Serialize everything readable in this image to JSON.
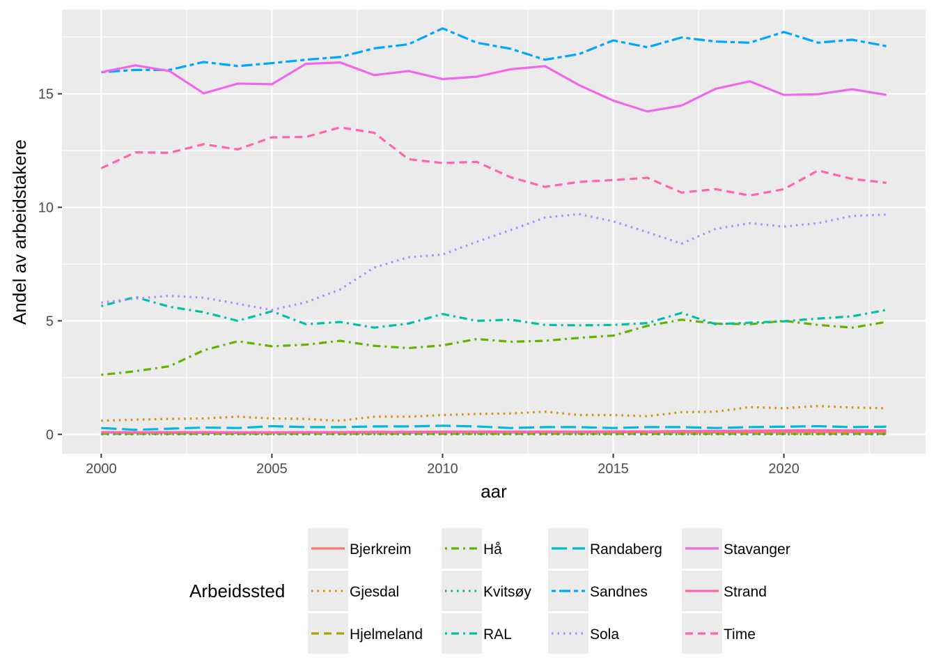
{
  "chart_data": {
    "type": "line",
    "title": "",
    "xlabel": "aar",
    "ylabel": "Andel av arbeidstakere",
    "xlim": [
      1998.85,
      2024.15
    ],
    "ylim": [
      -0.85,
      18.7
    ],
    "x_ticks": [
      2000,
      2005,
      2010,
      2015,
      2020
    ],
    "y_ticks": [
      0,
      5,
      10,
      15
    ],
    "grid": true,
    "legend": {
      "title": "Arbeidssted",
      "position": "bottom",
      "columns": 4
    },
    "x": [
      2000,
      2001,
      2002,
      2003,
      2004,
      2005,
      2006,
      2007,
      2008,
      2009,
      2010,
      2011,
      2012,
      2013,
      2014,
      2015,
      2016,
      2017,
      2018,
      2019,
      2020,
      2021,
      2022,
      2023
    ],
    "series": [
      {
        "name": "Bjerkreim",
        "color": "#F8766D",
        "dash": "solid",
        "values": [
          0.08,
          0.07,
          0.07,
          0.06,
          0.06,
          0.07,
          0.07,
          0.07,
          0.07,
          0.07,
          0.08,
          0.08,
          0.08,
          0.08,
          0.08,
          0.09,
          0.09,
          0.09,
          0.09,
          0.09,
          0.1,
          0.1,
          0.1,
          0.1
        ]
      },
      {
        "name": "Gjesdal",
        "color": "#DB8E00",
        "dash": "dot",
        "values": [
          0.6,
          0.65,
          0.68,
          0.7,
          0.78,
          0.7,
          0.68,
          0.6,
          0.78,
          0.78,
          0.85,
          0.9,
          0.92,
          1.0,
          0.85,
          0.85,
          0.8,
          0.98,
          1.0,
          1.2,
          1.15,
          1.25,
          1.18,
          1.15
        ]
      },
      {
        "name": "Hjelmeland",
        "color": "#AEA200",
        "dash": "dash",
        "values": [
          0.02,
          0.02,
          0.02,
          0.02,
          0.02,
          0.02,
          0.02,
          0.02,
          0.02,
          0.02,
          0.02,
          0.02,
          0.02,
          0.02,
          0.02,
          0.02,
          0.02,
          0.02,
          0.02,
          0.02,
          0.02,
          0.02,
          0.02,
          0.02
        ]
      },
      {
        "name": "Hå",
        "color": "#64B200",
        "dash": "dashdot",
        "values": [
          2.62,
          2.78,
          3.0,
          3.7,
          4.1,
          3.88,
          3.95,
          4.12,
          3.9,
          3.8,
          3.92,
          4.2,
          4.08,
          4.12,
          4.25,
          4.35,
          4.78,
          5.05,
          4.88,
          4.85,
          5.0,
          4.82,
          4.7,
          4.95
        ]
      },
      {
        "name": "Kvitsøy",
        "color": "#00BD5C",
        "dash": "dot",
        "values": [
          0.01,
          0.01,
          0.01,
          0.01,
          0.01,
          0.01,
          0.01,
          0.01,
          0.01,
          0.01,
          0.01,
          0.01,
          0.01,
          0.01,
          0.01,
          0.01,
          0.01,
          0.01,
          0.01,
          0.01,
          0.01,
          0.01,
          0.01,
          0.01
        ]
      },
      {
        "name": "RAL",
        "color": "#00C1A7",
        "dash": "dashdot",
        "values": [
          5.65,
          6.05,
          5.62,
          5.38,
          5.0,
          5.42,
          4.85,
          4.95,
          4.7,
          4.88,
          5.3,
          5.0,
          5.05,
          4.82,
          4.8,
          4.82,
          4.9,
          5.35,
          4.85,
          4.92,
          4.98,
          5.1,
          5.2,
          5.48
        ]
      },
      {
        "name": "Randaberg",
        "color": "#00BADE",
        "dash": "longdash",
        "values": [
          0.28,
          0.2,
          0.25,
          0.3,
          0.28,
          0.36,
          0.32,
          0.32,
          0.35,
          0.35,
          0.38,
          0.35,
          0.28,
          0.32,
          0.32,
          0.28,
          0.32,
          0.32,
          0.28,
          0.32,
          0.34,
          0.36,
          0.32,
          0.34
        ]
      },
      {
        "name": "Sandnes",
        "color": "#00A6FF",
        "dash": "twodash",
        "values": [
          15.95,
          16.05,
          16.05,
          16.4,
          16.22,
          16.35,
          16.5,
          16.62,
          17.0,
          17.18,
          17.88,
          17.25,
          16.98,
          16.5,
          16.75,
          17.35,
          17.05,
          17.48,
          17.3,
          17.25,
          17.72,
          17.25,
          17.38,
          17.1
        ]
      },
      {
        "name": "Sola",
        "color": "#B385FF",
        "dash": "dot",
        "values": [
          5.8,
          5.98,
          6.1,
          6.02,
          5.75,
          5.48,
          5.82,
          6.38,
          7.35,
          7.8,
          7.92,
          8.48,
          9.0,
          9.55,
          9.7,
          9.38,
          8.9,
          8.4,
          9.05,
          9.3,
          9.15,
          9.3,
          9.62,
          9.68
        ]
      },
      {
        "name": "Stavanger",
        "color": "#EF67EB",
        "dash": "solid",
        "values": [
          15.95,
          16.25,
          16.0,
          15.02,
          15.45,
          15.42,
          16.32,
          16.38,
          15.82,
          16.0,
          15.65,
          15.75,
          16.08,
          16.22,
          15.38,
          14.7,
          14.22,
          14.48,
          15.22,
          15.55,
          14.95,
          14.98,
          15.2,
          14.95
        ]
      },
      {
        "name": "Strand",
        "color": "#FF63B6",
        "dash": "solid",
        "values": [
          0.1,
          0.09,
          0.1,
          0.1,
          0.09,
          0.09,
          0.1,
          0.1,
          0.11,
          0.11,
          0.12,
          0.12,
          0.12,
          0.12,
          0.12,
          0.13,
          0.13,
          0.14,
          0.15,
          0.16,
          0.17,
          0.18,
          0.17,
          0.17
        ]
      },
      {
        "name": "Time",
        "color": "#FF64B0",
        "dash": "dash",
        "values": [
          11.72,
          12.42,
          12.4,
          12.78,
          12.55,
          13.08,
          13.1,
          13.52,
          13.28,
          12.12,
          11.95,
          12.0,
          11.32,
          10.9,
          11.12,
          11.2,
          11.3,
          10.65,
          10.8,
          10.52,
          10.8,
          11.62,
          11.25,
          11.08
        ]
      }
    ]
  }
}
